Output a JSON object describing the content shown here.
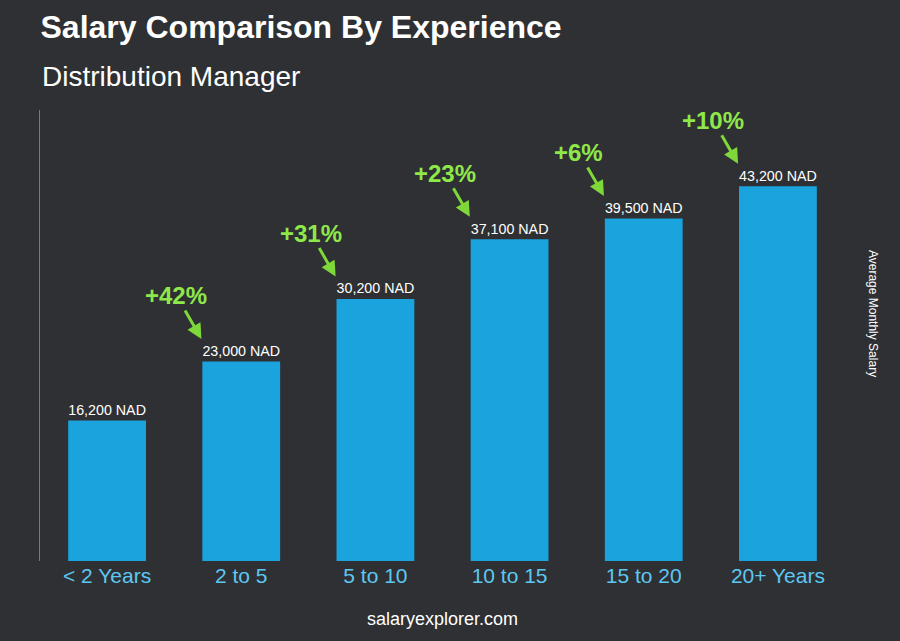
{
  "chart_data": {
    "type": "bar",
    "title": "Salary Comparison By Experience",
    "subtitle": "Distribution Manager",
    "y_label": "Average Monthly Salary",
    "categories": [
      "< 2 Years",
      "2 to 5",
      "5 to 10",
      "10 to 15",
      "15 to 20",
      "20+ Years"
    ],
    "values": [
      16200,
      23000,
      30200,
      37100,
      39500,
      43200
    ],
    "value_labels": [
      "16,200 NAD",
      "23,000 NAD",
      "30,200 NAD",
      "37,100 NAD",
      "39,500 NAD",
      "43,200 NAD"
    ],
    "data_labels": true,
    "color": "#1ba3dd",
    "ylim": [
      0,
      52000
    ],
    "grid": false,
    "tick_labels": "x",
    "annotations": [
      {
        "text": "+42%",
        "from": "< 2 Years",
        "to": "2 to 5"
      },
      {
        "text": "+31%",
        "from": "2 to 5",
        "to": "5 to 10"
      },
      {
        "text": "+23%",
        "from": "5 to 10",
        "to": "10 to 15"
      },
      {
        "text": "+6%",
        "from": "10 to 15",
        "to": "15 to 20"
      },
      {
        "text": "+10%",
        "from": "15 to 20",
        "to": "20+ Years"
      }
    ],
    "source": "salaryexplorer.com"
  }
}
